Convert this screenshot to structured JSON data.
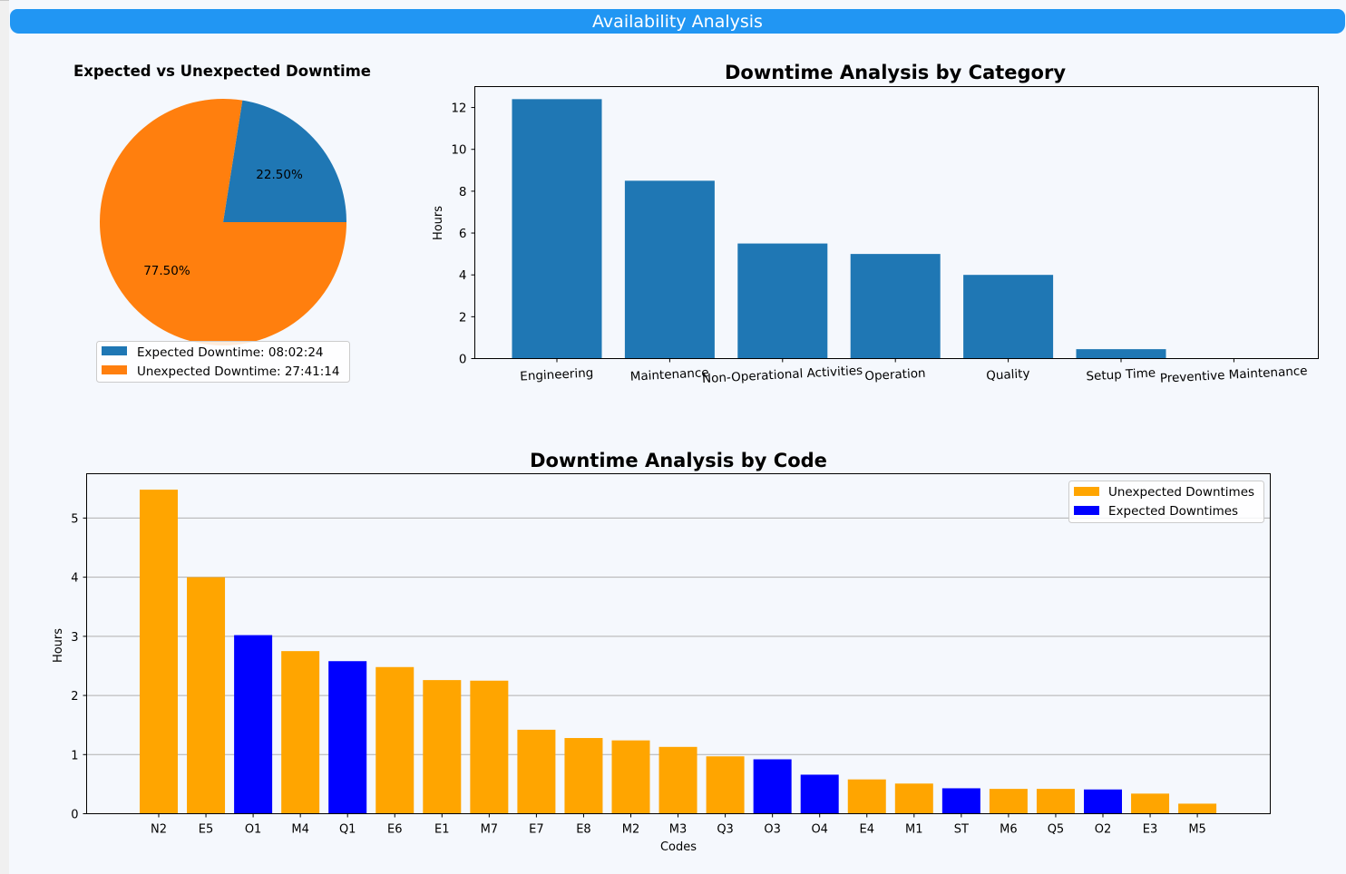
{
  "header": {
    "title": "Availability Analysis"
  },
  "colors": {
    "header_bg": "#2196f3",
    "expected": "#1f77b4",
    "unexpected": "#ff7f0e",
    "category_bar": "#1f77b4",
    "code_unexpected": "#ffa500",
    "code_expected": "#0000ff"
  },
  "chart_data": [
    {
      "type": "pie",
      "title": "Expected vs Unexpected Downtime",
      "slices": [
        {
          "label": "Expected Downtime: 08:02:24",
          "value": 22.5,
          "pct_label": "22.50%"
        },
        {
          "label": "Unexpected Downtime: 27:41:14",
          "value": 77.5,
          "pct_label": "77.50%"
        }
      ],
      "legend": "bottom"
    },
    {
      "type": "bar",
      "title": "Downtime Analysis by Category",
      "xlabel": "",
      "ylabel": "Hours",
      "categories": [
        "Engineering",
        "Maintenance",
        "Non-Operational Activities",
        "Operation",
        "Quality",
        "Setup Time",
        "Preventive Maintenance"
      ],
      "values": [
        12.4,
        8.5,
        5.5,
        5.0,
        4.0,
        0.45,
        0.0
      ],
      "ylim": [
        0,
        13
      ],
      "yticks": [
        0,
        2,
        4,
        6,
        8,
        10,
        12
      ],
      "grid": false
    },
    {
      "type": "bar",
      "title": "Downtime Analysis by Code",
      "xlabel": "Codes",
      "ylabel": "Hours",
      "categories": [
        "N2",
        "E5",
        "O1",
        "M4",
        "Q1",
        "E6",
        "E1",
        "M7",
        "E7",
        "E8",
        "M2",
        "M3",
        "Q3",
        "O3",
        "O4",
        "E4",
        "M1",
        "ST",
        "M6",
        "Q5",
        "O2",
        "E3",
        "M5"
      ],
      "values": [
        5.48,
        4.0,
        3.02,
        2.75,
        2.58,
        2.48,
        2.26,
        2.25,
        1.42,
        1.28,
        1.24,
        1.13,
        0.97,
        0.92,
        0.66,
        0.58,
        0.51,
        0.43,
        0.42,
        0.42,
        0.41,
        0.34,
        0.17
      ],
      "kinds": [
        "unexpected",
        "unexpected",
        "expected",
        "unexpected",
        "expected",
        "unexpected",
        "unexpected",
        "unexpected",
        "unexpected",
        "unexpected",
        "unexpected",
        "unexpected",
        "unexpected",
        "expected",
        "expected",
        "unexpected",
        "unexpected",
        "expected",
        "unexpected",
        "unexpected",
        "expected",
        "unexpected",
        "unexpected"
      ],
      "legend_entries": [
        {
          "label": "Unexpected Downtimes",
          "kind": "unexpected"
        },
        {
          "label": "Expected Downtimes",
          "kind": "expected"
        }
      ],
      "ylim": [
        0,
        5.75
      ],
      "yticks": [
        0,
        1,
        2,
        3,
        4,
        5
      ],
      "grid": true,
      "legend": "top-right"
    }
  ]
}
